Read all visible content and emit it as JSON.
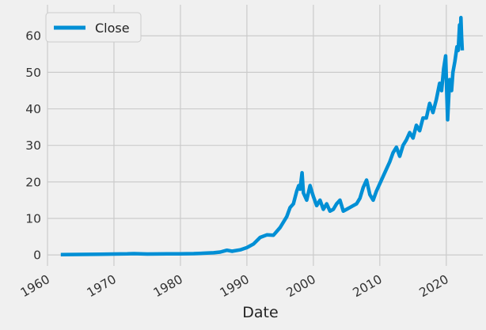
{
  "chart_data": {
    "type": "line",
    "title": "",
    "xlabel": "Date",
    "ylabel": "",
    "xlim": [
      1960,
      2025.5
    ],
    "ylim": [
      -3,
      68.5
    ],
    "x_ticks": [
      1960,
      1970,
      1980,
      1990,
      2000,
      2010,
      2020
    ],
    "y_ticks": [
      0,
      10,
      20,
      30,
      40,
      50,
      60
    ],
    "grid": true,
    "legend_position": "top-left",
    "colors": {
      "series": "#008fd5",
      "background": "#f0f0f0",
      "grid": "#cbcbcb"
    },
    "series": [
      {
        "name": "Close",
        "x": [
          1962.0,
          1965.0,
          1968.0,
          1970.0,
          1972.0,
          1973.0,
          1975.0,
          1978.0,
          1980.0,
          1982.0,
          1984.0,
          1985.0,
          1986.0,
          1987.0,
          1987.8,
          1988.0,
          1989.0,
          1990.0,
          1991.0,
          1992.0,
          1993.0,
          1994.0,
          1995.0,
          1996.0,
          1996.5,
          1997.0,
          1997.5,
          1997.8,
          1998.0,
          1998.3,
          1998.5,
          1999.0,
          1999.5,
          2000.0,
          2000.5,
          2001.0,
          2001.5,
          2002.0,
          2002.5,
          2003.0,
          2003.5,
          2004.0,
          2004.5,
          2005.0,
          2005.5,
          2006.0,
          2006.5,
          2007.0,
          2007.5,
          2008.0,
          2008.5,
          2009.0,
          2009.5,
          2010.0,
          2010.5,
          2011.0,
          2011.5,
          2012.0,
          2012.5,
          2013.0,
          2013.5,
          2014.0,
          2014.5,
          2015.0,
          2015.5,
          2016.0,
          2016.5,
          2017.0,
          2017.5,
          2018.0,
          2018.5,
          2019.0,
          2019.3,
          2019.6,
          2019.9,
          2020.2,
          2020.5,
          2020.8,
          2021.0,
          2021.3,
          2021.6,
          2021.8,
          2022.0,
          2022.1,
          2022.2,
          2022.3,
          2022.4
        ],
        "values": [
          0.1,
          0.15,
          0.2,
          0.25,
          0.3,
          0.35,
          0.25,
          0.3,
          0.3,
          0.35,
          0.5,
          0.6,
          0.8,
          1.3,
          1.0,
          1.1,
          1.4,
          2.0,
          3.0,
          4.8,
          5.5,
          5.4,
          7.5,
          10.5,
          13.0,
          14.0,
          17.5,
          19.0,
          18.0,
          22.5,
          17.0,
          15.0,
          19.0,
          16.0,
          13.5,
          15.0,
          12.5,
          14.0,
          12.0,
          12.5,
          14.0,
          15.0,
          12.0,
          12.5,
          13.0,
          13.5,
          14.0,
          15.5,
          18.5,
          20.5,
          16.5,
          15.0,
          17.5,
          19.5,
          21.5,
          23.5,
          25.5,
          28.0,
          29.5,
          27.0,
          30.0,
          31.5,
          33.5,
          32.0,
          35.5,
          34.0,
          37.5,
          37.5,
          41.5,
          39.0,
          42.5,
          47.0,
          45.0,
          51.0,
          54.5,
          37.0,
          48.0,
          45.0,
          50.0,
          53.0,
          57.0,
          56.0,
          63.0,
          58.0,
          65.0,
          60.0,
          56.0
        ]
      }
    ]
  }
}
